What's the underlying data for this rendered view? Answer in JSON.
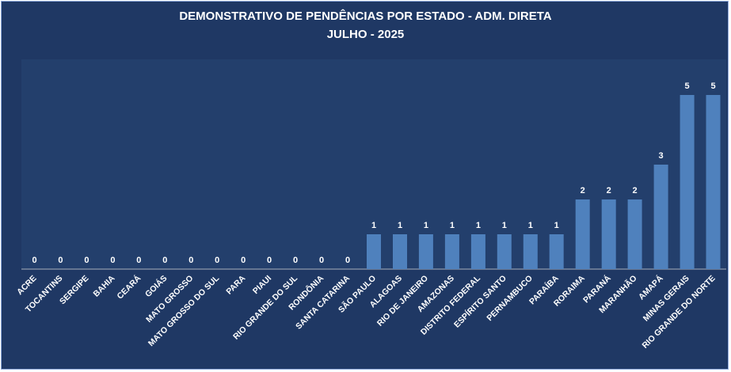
{
  "chart_data": {
    "type": "bar",
    "title": "DEMONSTRATIVO DE PENDÊNCIAS POR ESTADO - ADM. DIRETA",
    "subtitle": "JULHO - 2025",
    "categories": [
      "ACRE",
      "TOCANTINS",
      "SERGIPE",
      "BAHIA",
      "CEARÁ",
      "GOIÁS",
      "MATO GROSSO",
      "MATO GROSSO DO SUL",
      "PARA",
      "PIAUI",
      "RIO GRANDE DO SUL",
      "RONDÔNIA",
      "SANTA CATARINA",
      "SÃO PAULO",
      "ALAGOAS",
      "RIO DE JANEIRO",
      "AMAZONAS",
      "DISTRITO FEDERAL",
      "ESPÍRITO SANTO",
      "PERNAMBUCO",
      "PARAÍBA",
      "RORAIMA",
      "PARANÁ",
      "MARANHÃO",
      "AMAPÁ",
      "MINAS GERAIS",
      "RIO GRANDE DO NORTE"
    ],
    "values": [
      0,
      0,
      0,
      0,
      0,
      0,
      0,
      0,
      0,
      0,
      0,
      0,
      0,
      1,
      1,
      1,
      1,
      1,
      1,
      1,
      1,
      2,
      2,
      2,
      3,
      5,
      5
    ],
    "ylim": [
      0,
      5
    ],
    "grid": false,
    "data_labels": true
  },
  "colors": {
    "background": "#1f3864",
    "plot_area": "#233f6c",
    "bar": "#4f81bd",
    "text": "#ffffff"
  }
}
